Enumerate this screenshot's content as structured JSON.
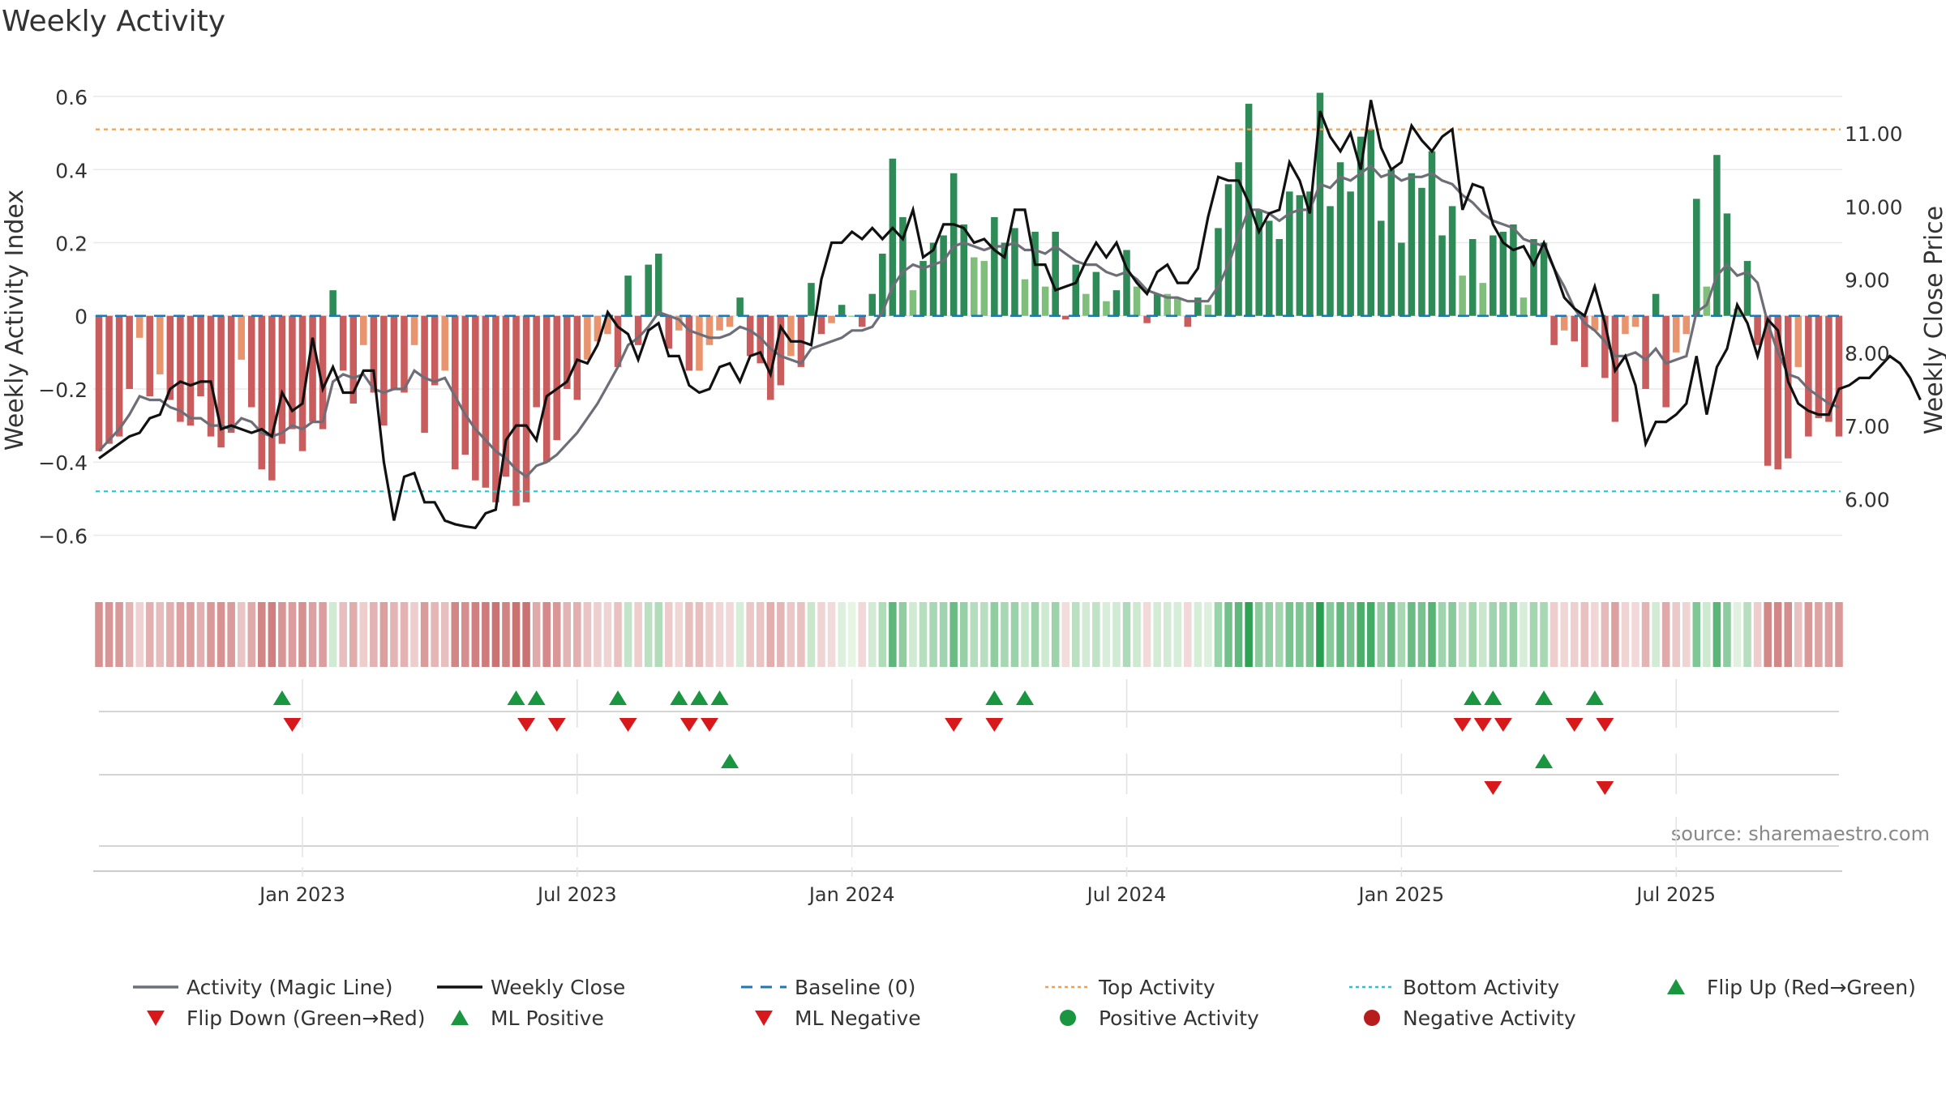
{
  "title": "Weekly Activity",
  "source": "source: sharemaestro.com",
  "colors": {
    "strong_green": "#2e8b57",
    "light_green": "#7fbf7b",
    "strong_red": "#c95c5c",
    "light_red": "#e8946e",
    "magic_line": "#6e6e78",
    "close": "#111111",
    "baseline": "#1f77b4",
    "top": "#e8a25a",
    "bottom": "#28c4c9",
    "marker_green": "#1a9641",
    "marker_red": "#d7191c"
  },
  "legend": [
    {
      "label": "Activity (Magic Line)",
      "symbol": "line-gray"
    },
    {
      "label": "Weekly Close",
      "symbol": "line-black"
    },
    {
      "label": "Baseline (0)",
      "symbol": "dash-blue"
    },
    {
      "label": "Top Activity",
      "symbol": "dot-orange"
    },
    {
      "label": "Bottom Activity",
      "symbol": "dot-cyan"
    },
    {
      "label": "Flip Up (Red→Green)",
      "symbol": "tri-up-green"
    },
    {
      "label": "Flip Down (Green→Red)",
      "symbol": "tri-down-red"
    },
    {
      "label": "ML Positive",
      "symbol": "tri-up-green"
    },
    {
      "label": "ML Negative",
      "symbol": "tri-down-red"
    },
    {
      "label": "Positive Activity",
      "symbol": "circle-green"
    },
    {
      "label": "Negative Activity",
      "symbol": "circle-red"
    }
  ],
  "chart_data": {
    "type": "bar",
    "ylabel": "Weekly Activity Index",
    "y2label": "Weekly Close Price",
    "ylim": [
      -0.65,
      0.62
    ],
    "y2lim": [
      5.25,
      11.6
    ],
    "y_ticks": [
      -0.6,
      -0.4,
      -0.2,
      0,
      0.2,
      0.4,
      0.6
    ],
    "y_tick_labels": [
      "−0.6",
      "−0.4",
      "−0.2",
      "0",
      "0.2",
      "0.4",
      "0.6"
    ],
    "y2_ticks": [
      6,
      7,
      8,
      9,
      10,
      11
    ],
    "y2_tick_labels": [
      "6.00",
      "7.00",
      "8.00",
      "9.00",
      "10.00",
      "11.00"
    ],
    "x_tick_weeks": [
      20,
      47,
      74,
      101,
      128,
      155
    ],
    "x_tick_labels": [
      "Jan 2023",
      "Jul 2023",
      "Jan 2024",
      "Jul 2024",
      "Jan 2025",
      "Jul 2025"
    ],
    "top_activity": 0.51,
    "bottom_activity": -0.48,
    "baseline": 0,
    "activity": [
      -0.37,
      -0.35,
      -0.33,
      -0.2,
      -0.06,
      -0.22,
      -0.16,
      -0.23,
      -0.29,
      -0.3,
      -0.22,
      -0.33,
      -0.36,
      -0.32,
      -0.12,
      -0.25,
      -0.42,
      -0.45,
      -0.35,
      -0.31,
      -0.37,
      -0.29,
      -0.31,
      0.07,
      -0.15,
      -0.24,
      -0.08,
      -0.21,
      -0.3,
      -0.2,
      -0.21,
      -0.08,
      -0.32,
      -0.19,
      -0.15,
      -0.42,
      -0.38,
      -0.45,
      -0.47,
      -0.51,
      -0.44,
      -0.52,
      -0.51,
      -0.25,
      -0.4,
      -0.34,
      -0.2,
      -0.23,
      -0.12,
      -0.07,
      -0.05,
      -0.14,
      0.11,
      -0.08,
      0.14,
      0.17,
      -0.09,
      -0.04,
      -0.15,
      -0.15,
      -0.08,
      -0.04,
      -0.03,
      0.05,
      -0.11,
      -0.13,
      -0.23,
      -0.19,
      -0.11,
      -0.14,
      0.09,
      -0.05,
      -0.02,
      0.03,
      0.0,
      -0.03,
      0.06,
      0.17,
      0.43,
      0.27,
      0.07,
      0.15,
      0.2,
      0.22,
      0.39,
      0.25,
      0.16,
      0.15,
      0.27,
      0.2,
      0.24,
      0.1,
      0.23,
      0.08,
      0.23,
      -0.01,
      0.14,
      0.06,
      0.12,
      0.04,
      0.07,
      0.18,
      0.08,
      -0.02,
      0.06,
      0.06,
      0.05,
      -0.03,
      0.05,
      0.03,
      0.24,
      0.36,
      0.42,
      0.58,
      0.29,
      0.26,
      0.21,
      0.34,
      0.33,
      0.34,
      0.61,
      0.3,
      0.42,
      0.34,
      0.49,
      0.51,
      0.26,
      0.4,
      0.2,
      0.39,
      0.35,
      0.45,
      0.22,
      0.3,
      0.11,
      0.21,
      0.09,
      0.22,
      0.23,
      0.25,
      0.05,
      0.21,
      0.2,
      -0.08,
      -0.04,
      -0.07,
      -0.14,
      -0.04,
      -0.17,
      -0.29,
      -0.05,
      -0.03,
      -0.2,
      0.06,
      -0.25,
      -0.1,
      -0.05,
      0.32,
      0.08,
      0.44,
      0.28,
      0.02,
      0.15,
      -0.08,
      -0.41,
      -0.42,
      -0.39,
      -0.14,
      -0.33,
      -0.28,
      -0.29,
      -0.33
    ],
    "magic_line": [
      -0.37,
      -0.34,
      -0.31,
      -0.27,
      -0.22,
      -0.23,
      -0.23,
      -0.25,
      -0.26,
      -0.28,
      -0.28,
      -0.3,
      -0.3,
      -0.31,
      -0.28,
      -0.29,
      -0.32,
      -0.33,
      -0.32,
      -0.3,
      -0.31,
      -0.29,
      -0.29,
      -0.18,
      -0.16,
      -0.17,
      -0.16,
      -0.2,
      -0.21,
      -0.2,
      -0.2,
      -0.15,
      -0.17,
      -0.18,
      -0.17,
      -0.22,
      -0.27,
      -0.31,
      -0.34,
      -0.37,
      -0.39,
      -0.42,
      -0.44,
      -0.41,
      -0.4,
      -0.38,
      -0.35,
      -0.32,
      -0.28,
      -0.24,
      -0.19,
      -0.14,
      -0.08,
      -0.06,
      -0.03,
      0.01,
      0.0,
      -0.01,
      -0.04,
      -0.05,
      -0.06,
      -0.06,
      -0.05,
      -0.03,
      -0.04,
      -0.06,
      -0.09,
      -0.11,
      -0.12,
      -0.13,
      -0.09,
      -0.08,
      -0.07,
      -0.06,
      -0.04,
      -0.04,
      -0.03,
      0.01,
      0.08,
      0.12,
      0.14,
      0.13,
      0.14,
      0.15,
      0.19,
      0.2,
      0.19,
      0.18,
      0.19,
      0.19,
      0.2,
      0.18,
      0.18,
      0.17,
      0.19,
      0.17,
      0.15,
      0.14,
      0.14,
      0.12,
      0.11,
      0.12,
      0.1,
      0.07,
      0.06,
      0.05,
      0.05,
      0.04,
      0.04,
      0.04,
      0.08,
      0.14,
      0.22,
      0.29,
      0.29,
      0.28,
      0.26,
      0.28,
      0.29,
      0.29,
      0.36,
      0.35,
      0.38,
      0.37,
      0.39,
      0.41,
      0.38,
      0.39,
      0.37,
      0.38,
      0.38,
      0.39,
      0.37,
      0.36,
      0.33,
      0.31,
      0.28,
      0.26,
      0.25,
      0.24,
      0.21,
      0.2,
      0.19,
      0.13,
      0.08,
      0.02,
      -0.02,
      -0.04,
      -0.07,
      -0.11,
      -0.11,
      -0.1,
      -0.12,
      -0.09,
      -0.13,
      -0.12,
      -0.11,
      0.01,
      0.03,
      0.11,
      0.14,
      0.11,
      0.12,
      0.09,
      -0.02,
      -0.1,
      -0.16,
      -0.17,
      -0.2,
      -0.22,
      -0.24,
      -0.25
    ],
    "weekly_close": [
      6.55,
      6.65,
      6.75,
      6.85,
      6.9,
      7.1,
      7.15,
      7.5,
      7.6,
      7.55,
      7.6,
      7.6,
      6.95,
      7.0,
      6.95,
      6.9,
      6.95,
      6.85,
      7.45,
      7.2,
      7.3,
      8.2,
      7.5,
      7.8,
      7.45,
      7.45,
      7.75,
      7.75,
      6.5,
      5.7,
      6.3,
      6.35,
      5.95,
      5.95,
      5.7,
      5.65,
      5.62,
      5.6,
      5.8,
      5.85,
      6.8,
      7.0,
      7.0,
      6.8,
      7.4,
      7.5,
      7.6,
      7.9,
      7.85,
      8.1,
      8.55,
      8.35,
      8.25,
      7.9,
      8.3,
      8.4,
      7.95,
      7.95,
      7.55,
      7.45,
      7.5,
      7.8,
      7.85,
      7.6,
      7.95,
      8.0,
      7.7,
      8.35,
      8.15,
      8.15,
      8.1,
      9.0,
      9.5,
      9.5,
      9.65,
      9.55,
      9.7,
      9.55,
      9.7,
      9.55,
      9.95,
      9.3,
      9.4,
      9.75,
      9.75,
      9.7,
      9.5,
      9.55,
      9.4,
      9.3,
      9.95,
      9.95,
      9.2,
      9.2,
      8.85,
      8.9,
      8.95,
      9.25,
      9.5,
      9.3,
      9.5,
      9.15,
      8.95,
      8.8,
      9.1,
      9.2,
      8.95,
      8.95,
      9.15,
      9.85,
      10.4,
      10.35,
      10.35,
      10.05,
      9.65,
      9.9,
      9.95,
      10.6,
      10.35,
      9.9,
      11.3,
      10.95,
      10.75,
      11.0,
      10.5,
      11.45,
      10.8,
      10.5,
      10.6,
      11.1,
      10.9,
      10.75,
      10.95,
      11.05,
      9.95,
      10.3,
      10.25,
      9.75,
      9.5,
      9.4,
      9.45,
      9.2,
      9.5,
      9.15,
      8.75,
      8.6,
      8.5,
      8.9,
      8.4,
      7.75,
      7.95,
      7.55,
      6.75,
      7.05,
      7.05,
      7.15,
      7.3,
      7.95,
      7.15,
      7.8,
      8.05,
      8.65,
      8.4,
      7.95,
      8.45,
      8.3,
      7.6,
      7.3,
      7.2,
      7.15,
      7.15,
      7.5,
      7.55,
      7.65,
      7.65,
      7.8,
      7.95,
      7.85,
      7.65,
      7.35
    ],
    "flip_up": [
      18,
      41,
      43,
      51,
      57,
      59,
      61,
      88,
      91,
      135,
      137,
      142,
      147
    ],
    "flip_down": [
      19,
      42,
      45,
      52,
      58,
      60,
      84,
      88,
      134,
      136,
      138,
      145,
      148
    ],
    "ml_positive": [
      62,
      142
    ],
    "ml_negative": [
      137,
      148
    ]
  }
}
